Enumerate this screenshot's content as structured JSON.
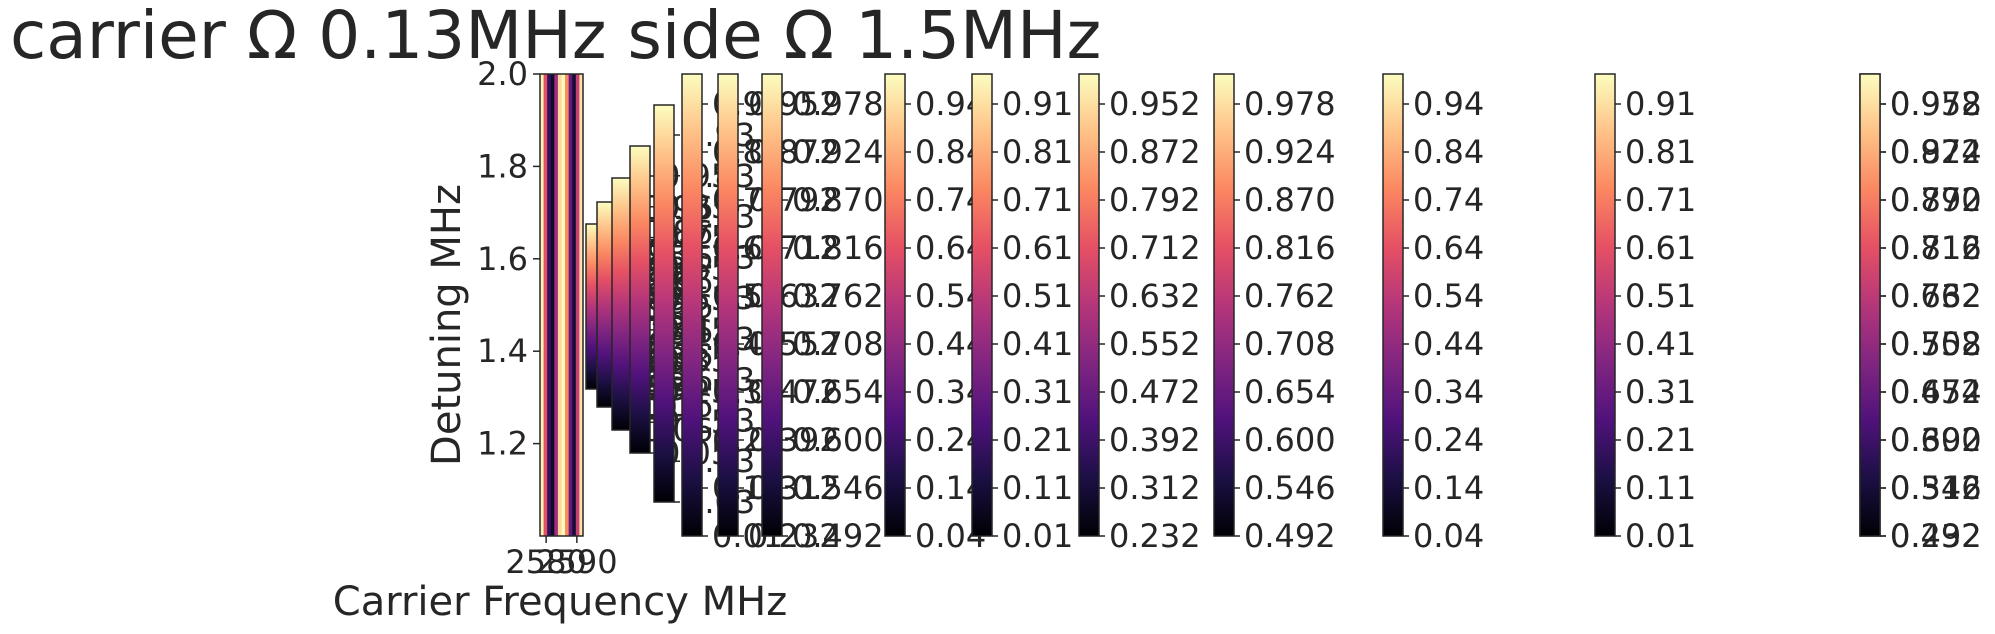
{
  "chart_data": {
    "type": "heatmap",
    "title": "carrier Ω 0.13MHz side Ω 1.5MHz",
    "xlabel": "Carrier Frequency MHz",
    "ylabel": "Detuning MHz",
    "xticks": [
      "2580",
      "2590"
    ],
    "xrange": [
      2578,
      2592
    ],
    "yticks": [
      "1.2",
      "1.4",
      "1.6",
      "1.8",
      "2.0"
    ],
    "yrange": [
      1.0,
      2.0
    ],
    "colormap": "magma",
    "colormap_stops": [
      "#000004",
      "#1c1044",
      "#4f127b",
      "#812581",
      "#b5367a",
      "#e55064",
      "#fb8761",
      "#fec287",
      "#fcfdbf"
    ],
    "heatmap_columns": [
      0.98,
      0.62,
      0.18,
      0.08,
      0.45,
      0.92,
      0.99,
      0.75,
      0.3,
      0.1,
      0.55,
      0.95
    ],
    "colorbars": [
      {
        "ticks": [
          "0.98",
          "0.93",
          "0.88",
          "0.83",
          "0.78",
          "0.73",
          "0.68",
          "0.63",
          "0.58",
          "0.53"
        ]
      },
      {
        "ticks": [
          "0.97",
          "0.87",
          "0.77",
          "0.67",
          "0.57",
          "0.47",
          "0.37",
          "0.27",
          "0.17",
          "0.07"
        ]
      },
      {
        "ticks": [
          "0.96",
          "0.86",
          "0.76",
          "0.66",
          "0.56",
          "0.46",
          "0.36",
          "0.26",
          "0.16",
          "0.06"
        ]
      },
      {
        "ticks": [
          "0.95",
          "0.85",
          "0.75",
          "0.65",
          "0.55",
          "0.45",
          "0.35",
          "0.25",
          "0.15",
          "0.05"
        ]
      },
      {
        "ticks": [
          "0.93",
          "0.83",
          "0.73",
          "0.63",
          "0.53",
          "0.43",
          "0.33",
          "0.23",
          "0.13",
          "0.03"
        ]
      },
      {
        "ticks": [
          "0.91",
          "0.81",
          "0.71",
          "0.61",
          "0.51",
          "0.41",
          "0.31",
          "0.21",
          "0.11",
          "0.01"
        ]
      },
      {
        "ticks": [
          "0.952",
          "0.872",
          "0.792",
          "0.712",
          "0.632",
          "0.552",
          "0.472",
          "0.392",
          "0.312",
          "0.232"
        ]
      },
      {
        "ticks": [
          "0.978",
          "0.924",
          "0.870",
          "0.816",
          "0.762",
          "0.708",
          "0.654",
          "0.600",
          "0.546",
          "0.492"
        ]
      },
      {
        "ticks": [
          "0.94",
          "0.84",
          "0.74",
          "0.64",
          "0.54",
          "0.44",
          "0.34",
          "0.24",
          "0.14",
          "0.04"
        ]
      },
      {
        "ticks": [
          "0.91",
          "0.81",
          "0.71",
          "0.61",
          "0.51",
          "0.41",
          "0.31",
          "0.21",
          "0.11",
          "0.01"
        ]
      },
      {
        "ticks": [
          "0.952",
          "0.872",
          "0.792",
          "0.712",
          "0.632",
          "0.552",
          "0.472",
          "0.392",
          "0.312",
          "0.232"
        ]
      },
      {
        "ticks": [
          "0.978",
          "0.924",
          "0.870",
          "0.816",
          "0.762",
          "0.708",
          "0.654",
          "0.600",
          "0.546",
          "0.492"
        ]
      },
      {
        "ticks": [
          "0.94",
          "0.84",
          "0.74",
          "0.64",
          "0.54",
          "0.44",
          "0.34",
          "0.24",
          "0.14",
          "0.04"
        ]
      },
      {
        "ticks": [
          "0.91",
          "0.81",
          "0.71",
          "0.61",
          "0.51",
          "0.41",
          "0.31",
          "0.21",
          "0.11",
          "0.01"
        ]
      },
      {
        "ticks": [
          "0.952",
          "0.872",
          "0.792",
          "0.712",
          "0.632",
          "0.552",
          "0.472",
          "0.392",
          "0.312",
          "0.232"
        ]
      },
      {
        "ticks": [
          "0.978",
          "0.924",
          "0.870",
          "0.816",
          "0.762",
          "0.708",
          "0.654",
          "0.600",
          "0.546",
          "0.492"
        ]
      }
    ]
  }
}
